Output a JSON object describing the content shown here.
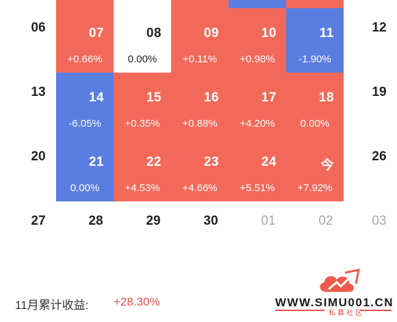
{
  "calendar": {
    "rows": [
      {
        "left_day": "06",
        "cells": [
          {
            "day": "07",
            "pct": "+0.66%",
            "tone": "red"
          },
          {
            "day": "08",
            "pct": "0.00%",
            "tone": "white"
          },
          {
            "day": "09",
            "pct": "+0.11%",
            "tone": "red"
          },
          {
            "day": "10",
            "pct": "+0.98%",
            "tone": "red"
          },
          {
            "day": "11",
            "pct": "-1.90%",
            "tone": "blue"
          }
        ],
        "right_day": "12"
      },
      {
        "left_day": "13",
        "cells": [
          {
            "day": "14",
            "pct": "-6.05%",
            "tone": "blue"
          },
          {
            "day": "15",
            "pct": "+0.35%",
            "tone": "red"
          },
          {
            "day": "16",
            "pct": "+0.88%",
            "tone": "red"
          },
          {
            "day": "17",
            "pct": "+4.20%",
            "tone": "red"
          },
          {
            "day": "18",
            "pct": "0.00%",
            "tone": "red"
          }
        ],
        "right_day": "19"
      },
      {
        "left_day": "20",
        "cells": [
          {
            "day": "21",
            "pct": "0.00%",
            "tone": "blue"
          },
          {
            "day": "22",
            "pct": "+4.53%",
            "tone": "red"
          },
          {
            "day": "23",
            "pct": "+4.66%",
            "tone": "red"
          },
          {
            "day": "24",
            "pct": "+5.51%",
            "tone": "red"
          },
          {
            "day": "今",
            "pct": "+7.92%",
            "tone": "red"
          }
        ],
        "right_day": "26"
      }
    ],
    "bottom_row": [
      "27",
      "28",
      "29",
      "30",
      "01",
      "02",
      "03"
    ],
    "bottom_row_muted": [
      false,
      false,
      false,
      false,
      true,
      true,
      true
    ]
  },
  "summary": {
    "label": "11月累计收益:",
    "value": "+28.30%"
  },
  "watermark": {
    "url": "WWW.SIMU001.CN",
    "subtitle": "私募社区"
  },
  "colors": {
    "positive": "#f2695a",
    "negative": "#5a7ee0",
    "text_positive": "#e8504a"
  }
}
